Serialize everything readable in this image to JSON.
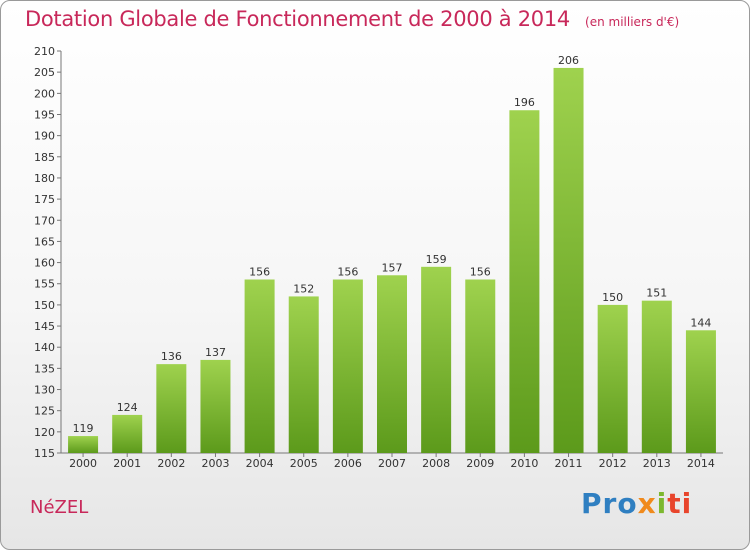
{
  "chart_data": {
    "type": "bar",
    "title": "Dotation Globale de Fonctionnement de 2000 à 2014",
    "unit": "(en milliers d'€)",
    "categories": [
      "2000",
      "2001",
      "2002",
      "2003",
      "2004",
      "2005",
      "2006",
      "2007",
      "2008",
      "2009",
      "2010",
      "2011",
      "2012",
      "2013",
      "2014"
    ],
    "values": [
      119,
      124,
      136,
      137,
      156,
      152,
      156,
      157,
      159,
      156,
      196,
      206,
      150,
      151,
      144
    ],
    "ylim": [
      115,
      210
    ],
    "yticks": [
      115,
      120,
      125,
      130,
      135,
      140,
      145,
      150,
      155,
      160,
      165,
      170,
      175,
      180,
      185,
      190,
      195,
      200,
      205,
      210
    ],
    "grid": false,
    "bar_color": "#82bd35"
  },
  "footer": {
    "commune": "NéZEL",
    "brand": [
      "Pro",
      "x",
      "i",
      "ti"
    ]
  }
}
